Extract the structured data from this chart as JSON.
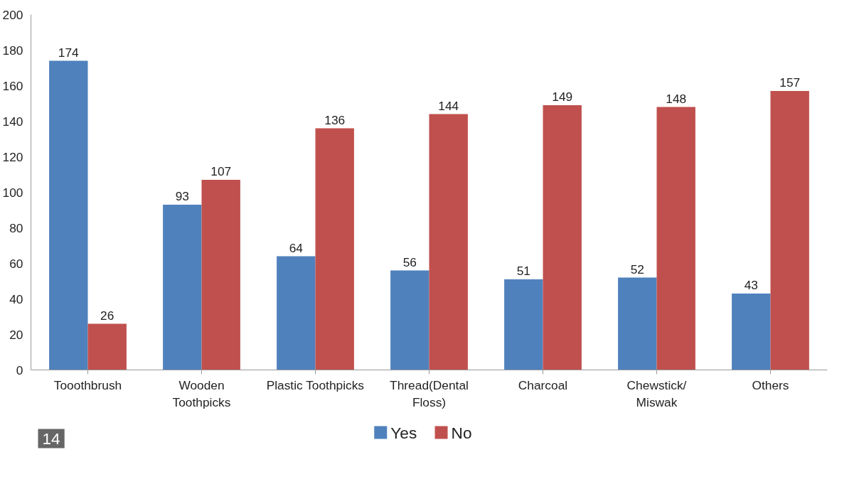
{
  "chart_data": {
    "type": "bar",
    "categories": [
      "Tooothbrush",
      "Wooden\nToothpicks",
      "Plastic Toothpicks",
      "Thread(Dental\nFloss)",
      "Charcoal",
      "Chewstick/\nMiswak",
      "Others"
    ],
    "series": [
      {
        "name": "Yes",
        "color": "#4f81bd",
        "values": [
          174,
          93,
          64,
          56,
          51,
          52,
          43
        ]
      },
      {
        "name": "No",
        "color": "#c0504d",
        "values": [
          26,
          107,
          136,
          144,
          149,
          148,
          157
        ]
      }
    ],
    "ylim": [
      0,
      200
    ],
    "yticks": [
      0,
      20,
      40,
      60,
      80,
      100,
      120,
      140,
      160,
      180,
      200
    ],
    "grid": false,
    "legend": "bottom",
    "data_labels": true,
    "annotations": [
      "14"
    ]
  }
}
